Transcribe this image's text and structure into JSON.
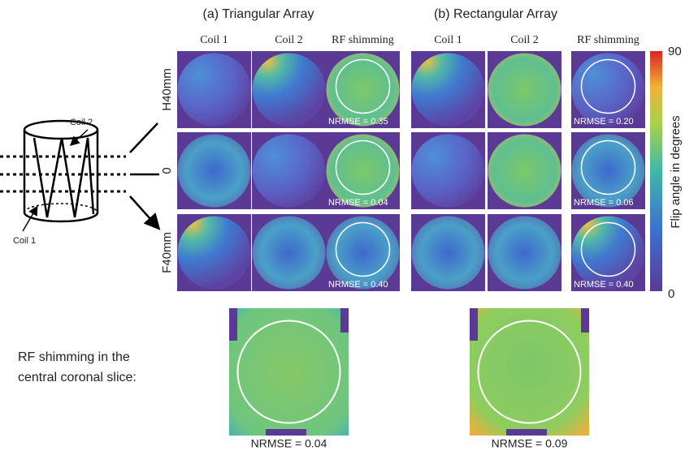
{
  "panels": [
    {
      "title": "(a) Triangular Array",
      "columns": [
        "Coil 1",
        "Coil 2",
        "RF shimming"
      ],
      "nrmse": [
        "NRMSE = 0.35",
        "NRMSE = 0.04",
        "NRMSE = 0.40"
      ]
    },
    {
      "title": "(b) Rectangular Array",
      "columns": [
        "Coil 1",
        "Coil 2",
        "RF shimming"
      ],
      "nrmse": [
        "NRMSE = 0.20",
        "NRMSE = 0.06",
        "NRMSE = 0.40"
      ]
    }
  ],
  "rows": [
    "H40mm",
    "0",
    "F40mm"
  ],
  "diagram": {
    "coil_top": "Coil 2",
    "coil_bottom": "Coil 1"
  },
  "colorbar": {
    "label": "Flip angle in degrees",
    "max": 90,
    "min": 0
  },
  "coronal": {
    "caption": [
      "RF shimming in the",
      "central coronal slice:"
    ],
    "nrmse": [
      "NRMSE = 0.04",
      "NRMSE = 0.09"
    ]
  }
}
